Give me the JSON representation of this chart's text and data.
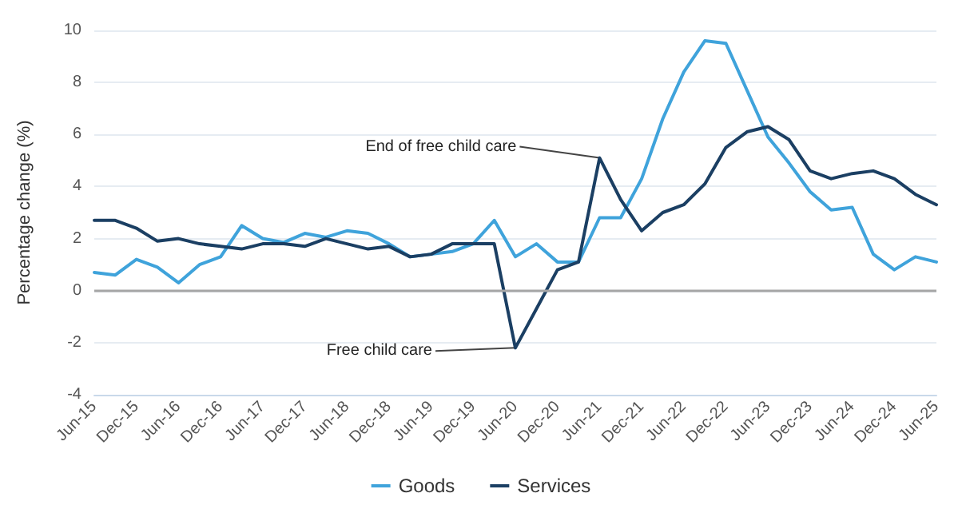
{
  "chart_data": {
    "type": "line",
    "xlabel": null,
    "ylabel": "Percentage change (%)",
    "categories": [
      "Jun-15",
      null,
      "Dec-15",
      null,
      "Jun-16",
      null,
      "Dec-16",
      null,
      "Jun-17",
      null,
      "Dec-17",
      null,
      "Jun-18",
      null,
      "Dec-18",
      null,
      "Jun-19",
      null,
      "Dec-19",
      null,
      "Jun-20",
      null,
      "Dec-20",
      null,
      "Jun-21",
      null,
      "Dec-21",
      null,
      "Jun-22",
      null,
      "Dec-22",
      null,
      "Jun-23",
      null,
      "Dec-23",
      null,
      "Jun-24",
      null,
      "Dec-24",
      null,
      "Jun-25"
    ],
    "series": [
      {
        "name": "Goods",
        "color": "#3fa3db",
        "values": [
          0.7,
          0.6,
          1.2,
          0.9,
          0.3,
          1.0,
          1.3,
          2.5,
          2.0,
          1.85,
          2.2,
          2.05,
          2.3,
          2.2,
          1.8,
          1.3,
          1.4,
          1.5,
          1.8,
          2.7,
          1.3,
          1.8,
          1.1,
          1.1,
          2.8,
          2.8,
          4.3,
          6.6,
          8.4,
          9.6,
          9.5,
          7.7,
          5.9,
          4.9,
          3.8,
          3.1,
          3.2,
          1.4,
          0.8,
          1.3,
          1.1
        ]
      },
      {
        "name": "Services",
        "color": "#1b3f63",
        "values": [
          2.7,
          2.7,
          2.4,
          1.9,
          2.0,
          1.8,
          1.7,
          1.6,
          1.8,
          1.8,
          1.7,
          2.0,
          1.8,
          1.6,
          1.7,
          1.3,
          1.4,
          1.8,
          1.8,
          1.8,
          -2.2,
          -0.7,
          0.8,
          1.1,
          5.1,
          3.5,
          2.3,
          3.0,
          3.3,
          4.1,
          5.5,
          6.1,
          6.3,
          5.8,
          4.6,
          4.3,
          4.5,
          4.6,
          4.3,
          3.7,
          3.3
        ]
      }
    ],
    "ylim": [
      -4,
      10
    ],
    "yticks": [
      -4,
      -2,
      0,
      2,
      4,
      6,
      8,
      10
    ],
    "grid": "y",
    "legend": "bottom",
    "marker": "none",
    "line_style": "solid",
    "ref_lines": [
      {
        "axis": "y",
        "value": 0,
        "color": "#a6a6a6"
      }
    ],
    "annotations": [
      {
        "text": "End of free child care",
        "x": "Jun-21",
        "y": 5.1
      },
      {
        "text": "Free child care",
        "x": "Jun-20",
        "y": -2.2
      }
    ]
  }
}
